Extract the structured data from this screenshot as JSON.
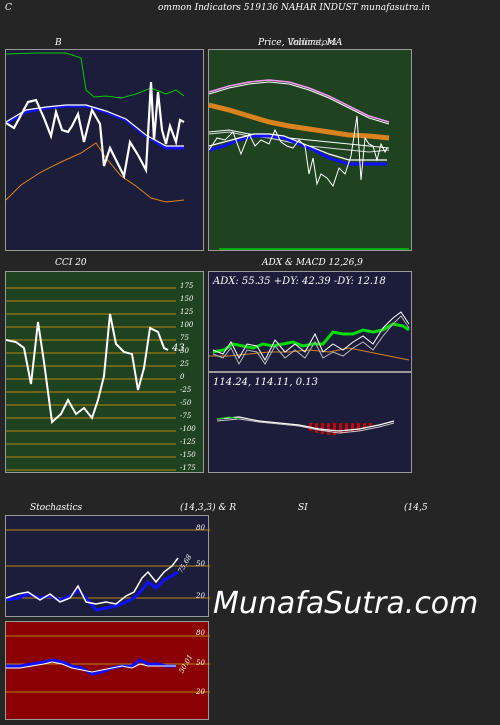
{
  "header": {
    "left_letter": "C",
    "title": "ommon  Indicators 519136  NAHAR INDUST munafasutra.in",
    "right_letter": "I"
  },
  "panels": {
    "bb": {
      "label": "B"
    },
    "price": {
      "label": "Price,  Volume, MA",
      "overlay": "Indicators"
    },
    "cci": {
      "label": "CCI 20",
      "value_label": "43",
      "ticks": [
        "175",
        "150",
        "125",
        "100",
        "75",
        "50",
        "25",
        "0",
        "-25",
        "-50",
        "-75",
        "-100",
        "-125",
        "-150",
        "-175"
      ]
    },
    "adx": {
      "label": "ADX  & MACD 12,26,9",
      "readout": "ADX: 55.35  +DY: 42.39 -DY: 12.18"
    },
    "macd": {
      "readout": "114.24,  114.11,  0.13"
    },
    "stoch": {
      "label": "Stochastics",
      "params": "(14,3,3) & R",
      "ticks": [
        "80",
        "50",
        "20"
      ],
      "value_label": "75.68"
    },
    "rsi": {
      "label": "SI",
      "params": "(14,5",
      "ticks": [
        "80",
        "50",
        "20"
      ],
      "value_label": "50.01"
    }
  },
  "watermark": "MunafaSutra.com",
  "colors": {
    "navy_bg": "#1b1d3a",
    "green_bg": "#1f4220",
    "red_bg": "#8b0000",
    "orange": "#d9821e",
    "blue": "#1010ff",
    "green_line": "#00dd00"
  }
}
